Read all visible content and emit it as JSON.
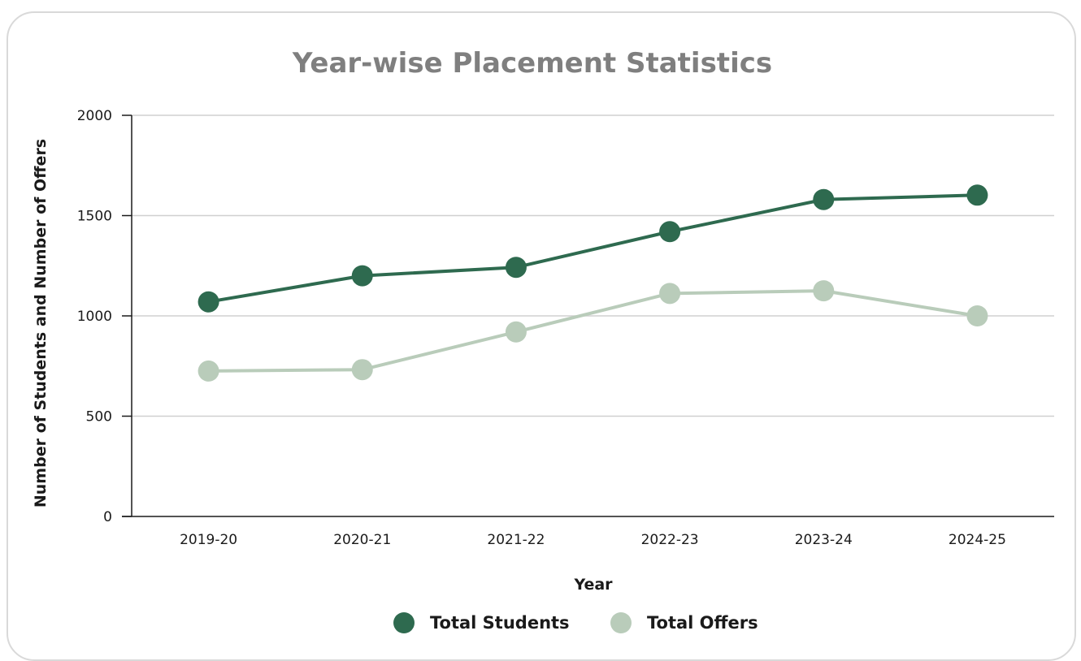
{
  "chart_data": {
    "type": "line",
    "title": "Year-wise Placement Statistics",
    "xlabel": "Year",
    "ylabel": "Number of Students and Number of Offers",
    "categories": [
      "2019-20",
      "2020-21",
      "2021-22",
      "2022-23",
      "2023-24",
      "2024-25"
    ],
    "ylim": [
      0,
      2000
    ],
    "yticks": [
      "0",
      "500",
      "1000",
      "1500",
      "2000"
    ],
    "grid": true,
    "legend_position": "bottom",
    "series": [
      {
        "name": "Total Students",
        "color": "#2e6a4f",
        "values": [
          1070,
          1200,
          1242,
          1420,
          1580,
          1602
        ]
      },
      {
        "name": "Total Offers",
        "color": "#b9ccba",
        "values": [
          725,
          732,
          920,
          1112,
          1125,
          1000
        ]
      }
    ]
  }
}
